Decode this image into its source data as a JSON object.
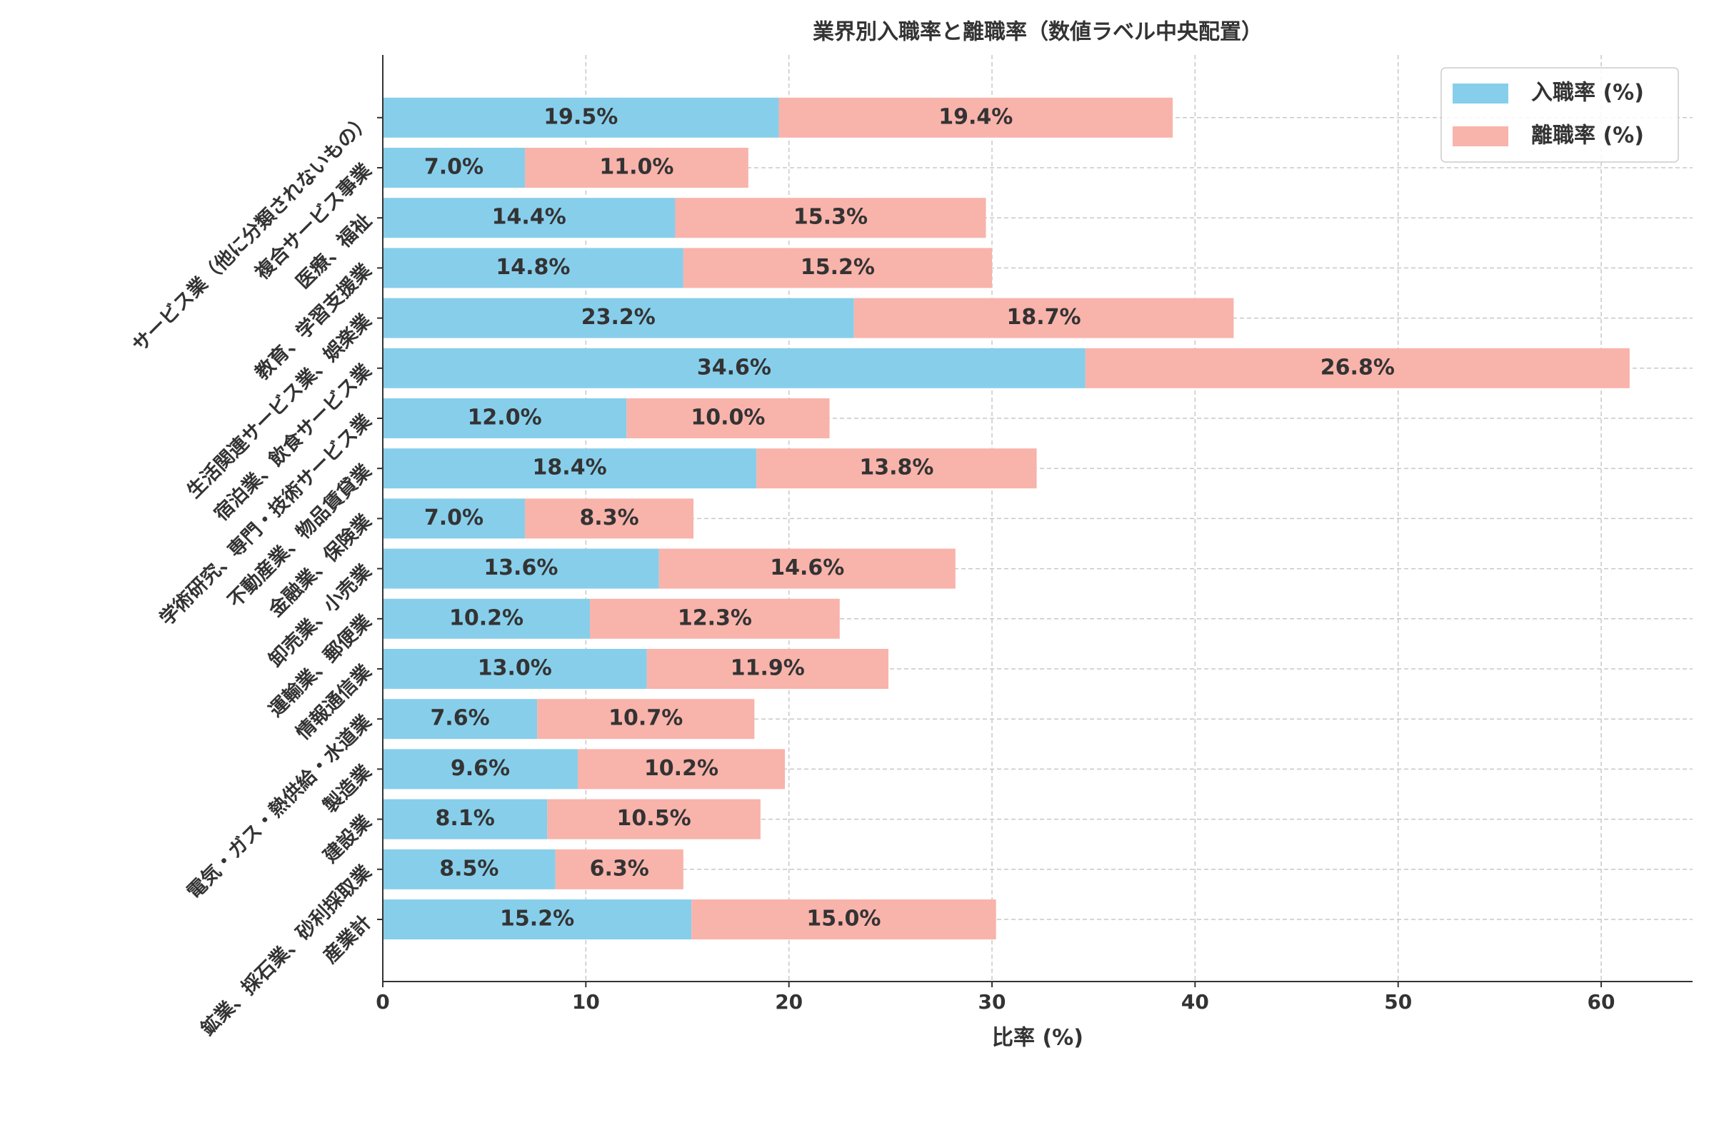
{
  "chart_data": {
    "type": "stacked-barh",
    "title": "業界別入職率と離職率（数値ラベル中央配置）",
    "x_label": "比率 (%)",
    "categories": [
      "産業計",
      "鉱業、採石業、砂利採取業",
      "建設業",
      "製造業",
      "電気・ガス・熱供給・水道業",
      "情報通信業",
      "運輸業、郵便業",
      "卸売業、小売業",
      "金融業、保険業",
      "不動産業、物品賃貸業",
      "学術研究、専門・技術サービス業",
      "宿泊業、飲食サービス業",
      "生活関連サービス業、娯楽業",
      "教育、学習支援業",
      "医療、福祉",
      "複合サービス事業",
      "サービス業（他に分類されないもの）"
    ],
    "series": [
      {
        "name": "入職率 (%)",
        "color": "#87ceeb",
        "values": [
          15.2,
          8.5,
          8.1,
          9.6,
          7.6,
          13.0,
          10.2,
          13.6,
          7.0,
          18.4,
          12.0,
          34.6,
          23.2,
          14.8,
          14.4,
          7.0,
          19.5
        ],
        "value_labels": [
          "15.2%",
          "8.5%",
          "8.1%",
          "9.6%",
          "7.6%",
          "13.0%",
          "10.2%",
          "13.6%",
          "7.0%",
          "18.4%",
          "12.0%",
          "34.6%",
          "23.2%",
          "14.8%",
          "14.4%",
          "7.0%",
          "19.5%"
        ]
      },
      {
        "name": "離職率 (%)",
        "color": "#f8b3ab",
        "values": [
          15.0,
          6.3,
          10.5,
          10.2,
          10.7,
          11.9,
          12.3,
          14.6,
          8.3,
          13.8,
          10.0,
          26.8,
          18.7,
          15.2,
          15.3,
          11.0,
          19.4
        ],
        "value_labels": [
          "15.0%",
          "6.3%",
          "10.5%",
          "10.2%",
          "10.7%",
          "11.9%",
          "12.3%",
          "14.6%",
          "8.3%",
          "13.8%",
          "10.0%",
          "26.8%",
          "18.7%",
          "15.2%",
          "15.3%",
          "11.0%",
          "19.4%"
        ]
      }
    ],
    "xlim": [
      0,
      64.5
    ],
    "xticks": [
      0,
      10,
      20,
      30,
      40,
      50,
      60
    ],
    "grid": true,
    "legend": "upper right"
  }
}
